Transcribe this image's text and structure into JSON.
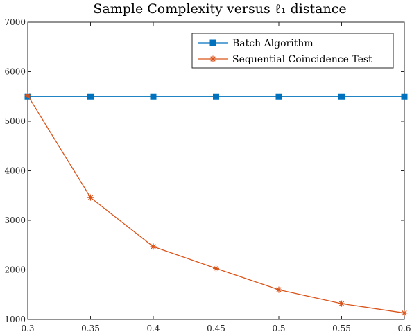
{
  "chart_data": {
    "type": "line",
    "title": "Sample Complexity versus ℓ₁ distance",
    "xlabel": "",
    "ylabel": "",
    "x": [
      0.3,
      0.35,
      0.4,
      0.45,
      0.5,
      0.55,
      0.6
    ],
    "xlim": [
      0.3,
      0.6
    ],
    "ylim": [
      1000,
      7000
    ],
    "xticks": [
      "0.3",
      "0.35",
      "0.4",
      "0.45",
      "0.5",
      "0.55",
      "0.6"
    ],
    "yticks": [
      "1000",
      "2000",
      "3000",
      "4000",
      "5000",
      "6000",
      "7000"
    ],
    "grid": false,
    "legend_position": "top-right",
    "series": [
      {
        "name": "Batch Algorithm",
        "values": [
          5500,
          5500,
          5500,
          5500,
          5500,
          5500,
          5500
        ],
        "color": "#0072BD",
        "marker": "square"
      },
      {
        "name": "Sequential Coincidence Test",
        "values": [
          5520,
          3460,
          2470,
          2030,
          1600,
          1320,
          1130
        ],
        "color": "#D95319",
        "marker": "asterisk"
      }
    ]
  }
}
